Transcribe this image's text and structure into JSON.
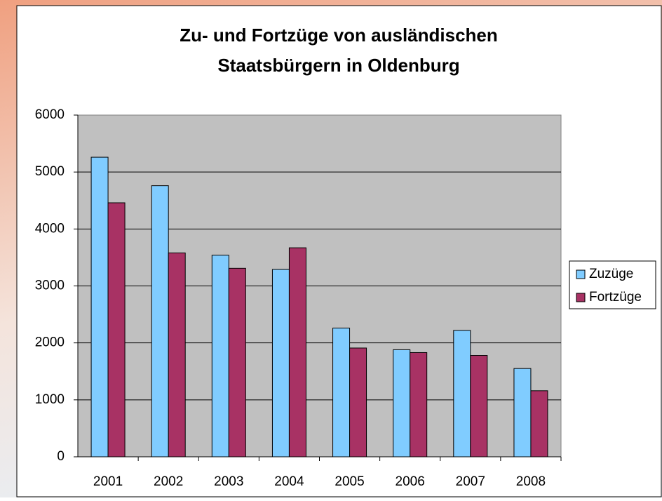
{
  "chart_data": {
    "type": "bar",
    "title": "Zu- und Fortzüge von ausländischen Staatsbürgern in Oldenburg",
    "categories": [
      "2001",
      "2002",
      "2003",
      "2004",
      "2005",
      "2006",
      "2007",
      "2008"
    ],
    "series": [
      {
        "name": "Zuzüge",
        "color": "#80ccff",
        "values": [
          5260,
          4760,
          3540,
          3290,
          2260,
          1880,
          2220,
          1550
        ]
      },
      {
        "name": "Fortzüge",
        "color": "#a83264",
        "values": [
          4460,
          3580,
          3310,
          3670,
          1910,
          1830,
          1780,
          1160
        ]
      }
    ],
    "ylim": [
      0,
      6000
    ],
    "yticks": [
      0,
      1000,
      2000,
      3000,
      4000,
      5000,
      6000
    ],
    "grid": true,
    "legend": "right"
  }
}
